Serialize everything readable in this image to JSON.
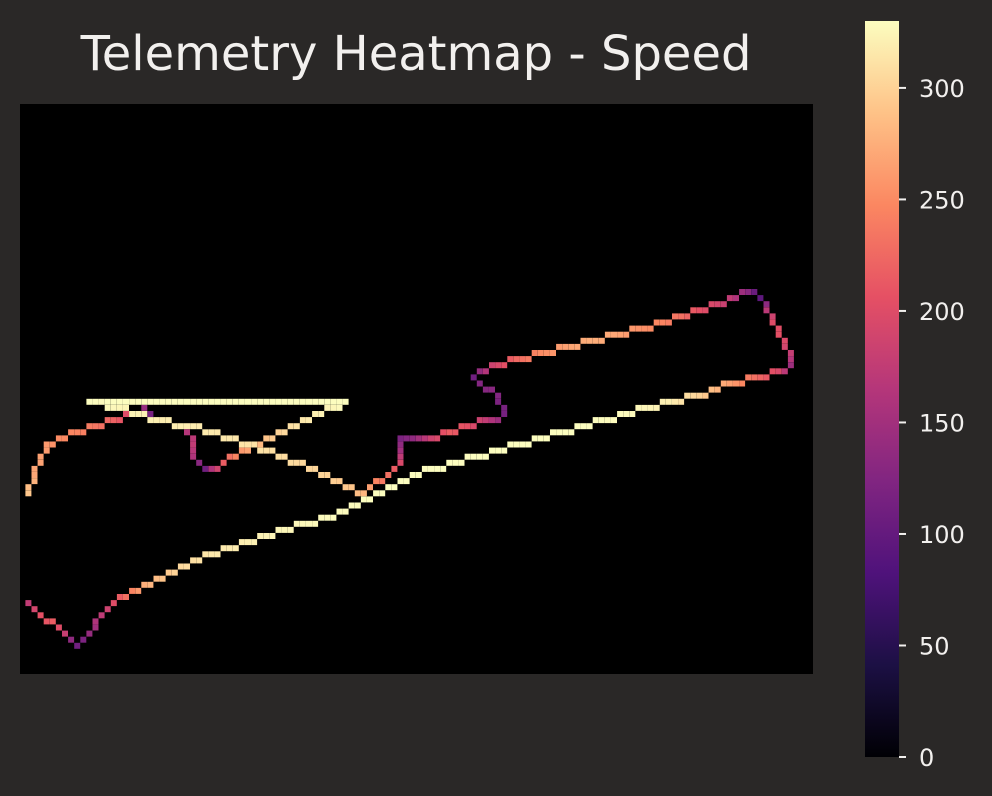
{
  "chart_data": {
    "type": "heatmap",
    "title": "Telemetry Heatmap - Speed",
    "xlabel": "",
    "ylabel": "",
    "axes_visible": false,
    "background_color": "#000000",
    "figure_background": "#2a2827",
    "colormap": "magma",
    "colorbar": {
      "range": [
        0,
        330
      ],
      "ticks": [
        0,
        50,
        100,
        150,
        200,
        250,
        300
      ],
      "tick_labels": [
        "0",
        "50",
        "100",
        "150",
        "200",
        "250",
        "300"
      ]
    },
    "grid": false,
    "track": [
      {
        "x": 4,
        "y": 8,
        "speed": 330
      },
      {
        "x": 9,
        "y": 9,
        "speed": 325
      },
      {
        "x": 15,
        "y": 11,
        "speed": 320
      },
      {
        "x": 21,
        "y": 12,
        "speed": 318
      },
      {
        "x": 27,
        "y": 14,
        "speed": 315
      },
      {
        "x": 33,
        "y": 16,
        "speed": 310
      },
      {
        "x": 38,
        "y": 18,
        "speed": 305
      },
      {
        "x": 43,
        "y": 20,
        "speed": 300
      },
      {
        "x": 47,
        "y": 22,
        "speed": 290
      },
      {
        "x": 49,
        "y": 23,
        "speed": 280
      },
      {
        "x": 50,
        "y": 22,
        "speed": 265
      },
      {
        "x": 51,
        "y": 21,
        "speed": 245
      },
      {
        "x": 53,
        "y": 20,
        "speed": 230
      },
      {
        "x": 54,
        "y": 19,
        "speed": 215
      },
      {
        "x": 55,
        "y": 18,
        "speed": 195
      },
      {
        "x": 55,
        "y": 16,
        "speed": 150
      },
      {
        "x": 55,
        "y": 14,
        "speed": 120
      },
      {
        "x": 57,
        "y": 14,
        "speed": 135
      },
      {
        "x": 60,
        "y": 14,
        "speed": 185
      },
      {
        "x": 63,
        "y": 13,
        "speed": 215
      },
      {
        "x": 66,
        "y": 12,
        "speed": 205
      },
      {
        "x": 69,
        "y": 11,
        "speed": 175
      },
      {
        "x": 71,
        "y": 11,
        "speed": 145
      },
      {
        "x": 72,
        "y": 10,
        "speed": 115
      },
      {
        "x": 71,
        "y": 8,
        "speed": 120
      },
      {
        "x": 70,
        "y": 6,
        "speed": 130
      },
      {
        "x": 68,
        "y": 5,
        "speed": 125
      },
      {
        "x": 67,
        "y": 4,
        "speed": 110
      },
      {
        "x": 68,
        "y": 3,
        "speed": 140
      },
      {
        "x": 70,
        "y": 2,
        "speed": 185
      },
      {
        "x": 74,
        "y": 1,
        "speed": 225
      },
      {
        "x": 78,
        "y": 0,
        "speed": 250
      },
      {
        "x": 82,
        "y": -1,
        "speed": 265
      },
      {
        "x": 86,
        "y": -2,
        "speed": 275
      },
      {
        "x": 90,
        "y": -3,
        "speed": 270
      },
      {
        "x": 94,
        "y": -4,
        "speed": 255
      },
      {
        "x": 98,
        "y": -5,
        "speed": 245
      },
      {
        "x": 101,
        "y": -6,
        "speed": 230
      },
      {
        "x": 104,
        "y": -7,
        "speed": 205
      },
      {
        "x": 107,
        "y": -8,
        "speed": 190
      },
      {
        "x": 109,
        "y": -9,
        "speed": 175
      },
      {
        "x": 112,
        "y": -10,
        "speed": 130
      },
      {
        "x": 113,
        "y": -10,
        "speed": 105
      },
      {
        "x": 114,
        "y": -9,
        "speed": 95
      },
      {
        "x": 115,
        "y": -7,
        "speed": 170
      },
      {
        "x": 116,
        "y": -5,
        "speed": 200
      },
      {
        "x": 117,
        "y": -3,
        "speed": 205
      },
      {
        "x": 118,
        "y": -1,
        "speed": 190
      },
      {
        "x": 119,
        "y": 1,
        "speed": 165
      },
      {
        "x": 119,
        "y": 2,
        "speed": 145
      },
      {
        "x": 117,
        "y": 3,
        "speed": 195
      },
      {
        "x": 113,
        "y": 4,
        "speed": 230
      },
      {
        "x": 109,
        "y": 5,
        "speed": 265
      },
      {
        "x": 104,
        "y": 7,
        "speed": 300
      },
      {
        "x": 99,
        "y": 8,
        "speed": 320
      },
      {
        "x": 92,
        "y": 10,
        "speed": 328
      },
      {
        "x": 85,
        "y": 12,
        "speed": 330
      },
      {
        "x": 78,
        "y": 14,
        "speed": 330
      },
      {
        "x": 71,
        "y": 16,
        "speed": 330
      },
      {
        "x": 64,
        "y": 18,
        "speed": 330
      },
      {
        "x": 57,
        "y": 20,
        "speed": 330
      },
      {
        "x": 50,
        "y": 24,
        "speed": 330
      },
      {
        "x": 43,
        "y": 27,
        "speed": 328
      },
      {
        "x": 36,
        "y": 29,
        "speed": 325
      },
      {
        "x": 30,
        "y": 31,
        "speed": 320
      },
      {
        "x": 24,
        "y": 33,
        "speed": 315
      },
      {
        "x": 19,
        "y": 35,
        "speed": 305
      },
      {
        "x": 16,
        "y": 37,
        "speed": 290
      },
      {
        "x": 13,
        "y": 38,
        "speed": 275
      },
      {
        "x": 11,
        "y": 39,
        "speed": 245
      },
      {
        "x": 9,
        "y": 40,
        "speed": 215
      },
      {
        "x": 7,
        "y": 42,
        "speed": 185
      },
      {
        "x": 5,
        "y": 44,
        "speed": 160
      },
      {
        "x": 4,
        "y": 46,
        "speed": 140
      },
      {
        "x": 3,
        "y": 47,
        "speed": 120
      },
      {
        "x": 2,
        "y": 48,
        "speed": 110
      },
      {
        "x": 1,
        "y": 47,
        "speed": 135
      },
      {
        "x": 0,
        "y": 46,
        "speed": 180
      },
      {
        "x": -1,
        "y": 45,
        "speed": 200
      },
      {
        "x": -2,
        "y": 44,
        "speed": 215
      },
      {
        "x": -4,
        "y": 43,
        "speed": 205
      },
      {
        "x": -5,
        "y": 42,
        "speed": 190
      },
      {
        "x": -6,
        "y": 41,
        "speed": 175
      },
      {
        "x": -7,
        "y": 40,
        "speed": 140
      },
      {
        "x": -7,
        "y": 38,
        "speed": 115
      },
      {
        "x": -7,
        "y": 36,
        "speed": 110
      },
      {
        "x": -7,
        "y": 34,
        "speed": 150
      },
      {
        "x": -7,
        "y": 32,
        "speed": 250
      },
      {
        "x": -7,
        "y": 30,
        "speed": 300
      },
      {
        "x": -7,
        "y": 28,
        "speed": 320
      },
      {
        "x": -7,
        "y": 26,
        "speed": 315
      },
      {
        "x": -7,
        "y": 24,
        "speed": 300
      },
      {
        "x": -6,
        "y": 22,
        "speed": 285
      },
      {
        "x": -5,
        "y": 20,
        "speed": 270
      },
      {
        "x": -4,
        "y": 17,
        "speed": 265
      },
      {
        "x": -3,
        "y": 15,
        "speed": 260
      },
      {
        "x": -1,
        "y": 14,
        "speed": 250
      },
      {
        "x": 2,
        "y": 13,
        "speed": 245
      },
      {
        "x": 5,
        "y": 12,
        "speed": 235
      },
      {
        "x": 8,
        "y": 11,
        "speed": 220
      },
      {
        "x": 10,
        "y": 10,
        "speed": 200
      },
      {
        "x": 12,
        "y": 10,
        "speed": 175
      },
      {
        "x": 13,
        "y": 9,
        "speed": 140
      },
      {
        "x": 14,
        "y": 10,
        "speed": 115
      },
      {
        "x": 15,
        "y": 11,
        "speed": 110
      },
      {
        "x": 17,
        "y": 11,
        "speed": 125
      },
      {
        "x": 19,
        "y": 12,
        "speed": 145
      },
      {
        "x": 20,
        "y": 13,
        "speed": 165
      },
      {
        "x": 21,
        "y": 15,
        "speed": 175
      },
      {
        "x": 21,
        "y": 17,
        "speed": 160
      },
      {
        "x": 22,
        "y": 18,
        "speed": 130
      },
      {
        "x": 23,
        "y": 19,
        "speed": 110
      },
      {
        "x": 24,
        "y": 19,
        "speed": 160
      },
      {
        "x": 26,
        "y": 18,
        "speed": 215
      },
      {
        "x": 29,
        "y": 16,
        "speed": 260
      },
      {
        "x": 33,
        "y": 14,
        "speed": 290
      },
      {
        "x": 37,
        "y": 12,
        "speed": 310
      },
      {
        "x": 41,
        "y": 10,
        "speed": 320
      },
      {
        "x": 44,
        "y": 9,
        "speed": 325
      },
      {
        "x": 46,
        "y": 8,
        "speed": 330
      }
    ]
  }
}
